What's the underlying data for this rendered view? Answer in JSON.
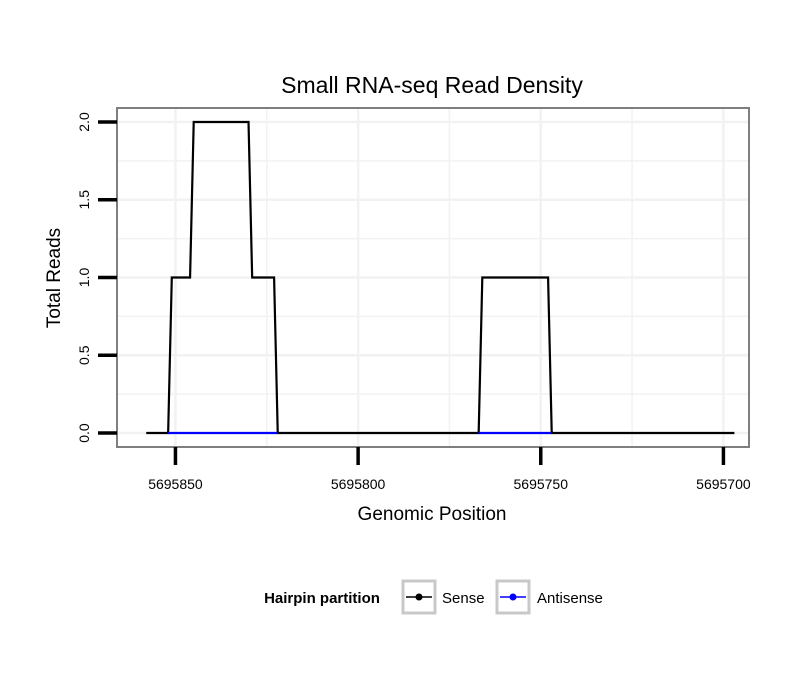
{
  "chart_data": {
    "type": "line",
    "title": "Small RNA-seq Read Density",
    "xlabel": "Genomic Position",
    "ylabel": "Total Reads",
    "xlim": [
      5695866,
      5695693
    ],
    "ylim": [
      -0.09,
      2.09
    ],
    "x_reversed": true,
    "grid": true,
    "x_ticks": [
      5695850,
      5695800,
      5695750,
      5695700
    ],
    "x_tick_labels": [
      "5695850",
      "5695800",
      "5695750",
      "5695700"
    ],
    "y_ticks": [
      0.0,
      0.5,
      1.0,
      1.5,
      2.0
    ],
    "y_tick_labels": [
      "0.0",
      "0.5",
      "1.0",
      "1.5",
      "2.0"
    ],
    "legend": {
      "title": "Hairpin partition",
      "position": "bottom"
    },
    "series": [
      {
        "name": "Sense",
        "color": "#000000",
        "x": [
          5695858,
          5695852,
          5695851,
          5695846,
          5695845,
          5695830,
          5695829,
          5695823,
          5695822,
          5695767,
          5695766,
          5695748,
          5695747,
          5695697
        ],
        "values": [
          0,
          0,
          1,
          1,
          2,
          2,
          1,
          1,
          0,
          0,
          1,
          1,
          0,
          0
        ]
      },
      {
        "name": "Antisense",
        "color": "#0000ff",
        "x": [
          5695852,
          5695822,
          5695767,
          5695747
        ],
        "values": [
          0,
          0,
          0,
          0
        ],
        "segments": [
          [
            0,
            1
          ],
          [
            2,
            3
          ]
        ]
      }
    ]
  }
}
